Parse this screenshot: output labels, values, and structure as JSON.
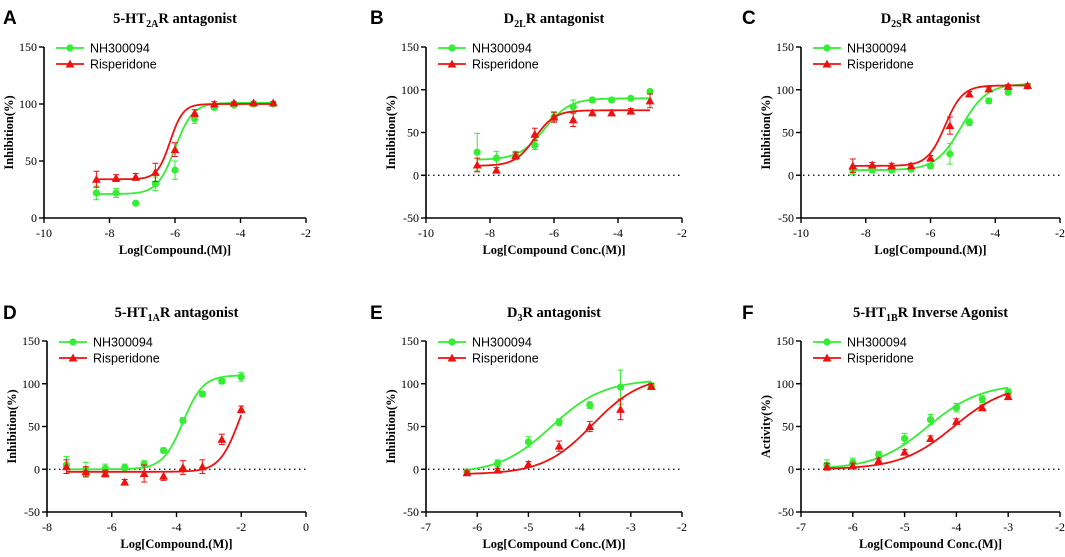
{
  "colors": {
    "green": "#33ee33",
    "red": "#ee1111",
    "axis": "#000000"
  },
  "legend": {
    "series_a": "NH300094",
    "series_b": "Risperidone"
  },
  "chart_data": [
    {
      "panel": "A",
      "type": "line",
      "title": {
        "pre": "5-HT",
        "sub": "2A",
        "post": "R antagonist"
      },
      "xlabel": "Log[Compound.(M)]",
      "ylabel": "Inhibition(%)",
      "xlim": [
        -10,
        -2
      ],
      "xticks": [
        -10,
        -8,
        -6,
        -4,
        -2
      ],
      "ylim": [
        0,
        150
      ],
      "yticks": [
        0,
        50,
        100,
        150
      ],
      "zero_line": false,
      "series": [
        {
          "name": "NH300094",
          "color": "green",
          "marker": "circle",
          "fit": {
            "bottom": 21,
            "top": 101,
            "x50": -6.0,
            "hill": 1.6
          },
          "x": [
            -8.4,
            -7.8,
            -7.2,
            -6.6,
            -6.0,
            -5.4,
            -4.8,
            -4.2,
            -3.6,
            -3.0
          ],
          "y": [
            22,
            22,
            13,
            30,
            42,
            87,
            97,
            99,
            100,
            100
          ],
          "err": [
            6,
            4,
            1,
            6,
            8,
            4,
            2,
            1,
            1,
            1
          ]
        },
        {
          "name": "Risperidone",
          "color": "red",
          "marker": "triangle",
          "fit": {
            "bottom": 34,
            "top": 100,
            "x50": -6.15,
            "hill": 2.2
          },
          "x": [
            -8.4,
            -7.8,
            -7.2,
            -6.6,
            -6.0,
            -5.4,
            -4.8,
            -4.2,
            -3.6,
            -3.0
          ],
          "y": [
            34,
            35,
            36,
            40,
            60,
            92,
            100,
            101,
            101,
            101
          ],
          "err": [
            7,
            3,
            3,
            8,
            6,
            3,
            2,
            1,
            1,
            1
          ]
        }
      ]
    },
    {
      "panel": "B",
      "type": "line",
      "title": {
        "pre": "D",
        "sub": "2L",
        "post": "R antagonist"
      },
      "xlabel": "Log[Compound Conc.(M)]",
      "ylabel": "Inhibition(%)",
      "xlim": [
        -10,
        -2
      ],
      "xticks": [
        -10,
        -8,
        -6,
        -4,
        -2
      ],
      "ylim": [
        -50,
        150
      ],
      "yticks": [
        -50,
        0,
        50,
        100,
        150
      ],
      "zero_line": true,
      "series": [
        {
          "name": "NH300094",
          "color": "green",
          "marker": "circle",
          "fit": {
            "bottom": 18,
            "top": 90,
            "x50": -6.3,
            "hill": 1.1
          },
          "x": [
            -8.4,
            -7.8,
            -7.2,
            -6.6,
            -6.0,
            -5.4,
            -4.8,
            -4.2,
            -3.6,
            -3.0
          ],
          "y": [
            27,
            20,
            23,
            35,
            68,
            80,
            88,
            88,
            90,
            98
          ],
          "err": [
            22,
            8,
            5,
            5,
            5,
            8,
            3,
            2,
            2,
            2
          ]
        },
        {
          "name": "Risperidone",
          "color": "red",
          "marker": "triangle",
          "fit": {
            "bottom": 11,
            "top": 76,
            "x50": -6.6,
            "hill": 1.4
          },
          "x": [
            -8.4,
            -7.8,
            -7.2,
            -6.6,
            -6.0,
            -5.4,
            -4.8,
            -4.2,
            -3.6,
            -3.0
          ],
          "y": [
            12,
            6,
            23,
            48,
            68,
            65,
            73,
            73,
            75,
            87
          ],
          "err": [
            8,
            3,
            4,
            7,
            6,
            8,
            3,
            3,
            3,
            8
          ]
        }
      ]
    },
    {
      "panel": "C",
      "type": "line",
      "title": {
        "pre": "D",
        "sub": "2S",
        "post": "R antagonist"
      },
      "xlabel": "Log[Compound.(M)]",
      "ylabel": "Inhibition(%)",
      "xlim": [
        -10,
        -2
      ],
      "xticks": [
        -10,
        -8,
        -6,
        -4,
        -2
      ],
      "ylim": [
        -50,
        150
      ],
      "yticks": [
        -50,
        0,
        50,
        100,
        150
      ],
      "zero_line": true,
      "series": [
        {
          "name": "NH300094",
          "color": "green",
          "marker": "circle",
          "fit": {
            "bottom": 6,
            "top": 107,
            "x50": -5.05,
            "hill": 1.1
          },
          "x": [
            -8.4,
            -7.8,
            -7.2,
            -6.6,
            -6.0,
            -5.4,
            -4.8,
            -4.2,
            -3.6,
            -3.0
          ],
          "y": [
            6,
            6,
            6,
            7,
            11,
            25,
            62,
            87,
            97,
            104
          ],
          "err": [
            5,
            3,
            3,
            3,
            3,
            12,
            4,
            3,
            2,
            2
          ]
        },
        {
          "name": "Risperidone",
          "color": "red",
          "marker": "triangle",
          "fit": {
            "bottom": 11,
            "top": 105,
            "x50": -5.55,
            "hill": 1.6
          },
          "x": [
            -8.4,
            -7.8,
            -7.2,
            -6.6,
            -6.0,
            -5.4,
            -4.8,
            -4.2,
            -3.6,
            -3.0
          ],
          "y": [
            11,
            12,
            11,
            11,
            20,
            58,
            95,
            101,
            104,
            105
          ],
          "err": [
            8,
            3,
            3,
            3,
            3,
            10,
            3,
            2,
            2,
            2
          ]
        }
      ]
    },
    {
      "panel": "D",
      "type": "line",
      "title": {
        "pre": "5-HT",
        "sub": "1A",
        "post": "R antagonist"
      },
      "xlabel": "Log[Compound.(M)]",
      "ylabel": "Inhibition(%)",
      "xlim": [
        -8,
        0
      ],
      "xticks": [
        -8,
        -6,
        -4,
        -2,
        0
      ],
      "ylim": [
        -50,
        150
      ],
      "yticks": [
        -50,
        0,
        50,
        100,
        150
      ],
      "zero_line": true,
      "series": [
        {
          "name": "NH300094",
          "color": "green",
          "marker": "circle",
          "fit": {
            "bottom": 0,
            "top": 110,
            "x50": -3.8,
            "hill": 1.4
          },
          "x": [
            -7.4,
            -6.8,
            -6.2,
            -5.6,
            -5.0,
            -4.4,
            -3.8,
            -3.2,
            -2.6,
            -2.0
          ],
          "y": [
            5,
            0,
            1,
            2,
            6,
            22,
            57,
            88,
            103,
            108
          ],
          "err": [
            10,
            8,
            5,
            4,
            4,
            3,
            3,
            3,
            3,
            5
          ]
        },
        {
          "name": "Risperidone",
          "color": "red",
          "marker": "triangle",
          "fit": {
            "bottom": -3,
            "top": 120,
            "x50": -2.05,
            "hill": 1.4
          },
          "x": [
            -7.4,
            -6.8,
            -6.2,
            -5.6,
            -5.0,
            -4.4,
            -3.8,
            -3.2,
            -2.6,
            -2.0
          ],
          "y": [
            3,
            -3,
            -5,
            -15,
            -5,
            -8,
            2,
            3,
            35,
            70
          ],
          "err": [
            8,
            6,
            4,
            3,
            10,
            5,
            8,
            8,
            6,
            4
          ]
        }
      ]
    },
    {
      "panel": "E",
      "type": "line",
      "title": {
        "pre": "D",
        "sub": "3",
        "post": "R antagonist"
      },
      "xlabel": "Log[Compound Conc.(M)]",
      "ylabel": "Inhibition(%)",
      "xlim": [
        -7,
        -2
      ],
      "xticks": [
        -7,
        -6,
        -5,
        -4,
        -3,
        -2
      ],
      "ylim": [
        -50,
        150
      ],
      "yticks": [
        -50,
        0,
        50,
        100,
        150
      ],
      "zero_line": true,
      "series": [
        {
          "name": "NH300094",
          "color": "green",
          "marker": "circle",
          "fit": {
            "bottom": -5,
            "top": 105,
            "x50": -4.55,
            "hill": 0.85
          },
          "x": [
            -6.2,
            -5.6,
            -5.0,
            -4.4,
            -3.8,
            -3.2,
            -2.6
          ],
          "y": [
            -3,
            7,
            32,
            55,
            75,
            96,
            97
          ],
          "err": [
            3,
            4,
            6,
            4,
            4,
            20,
            4
          ]
        },
        {
          "name": "Risperidone",
          "color": "red",
          "marker": "triangle",
          "fit": {
            "bottom": -6,
            "top": 110,
            "x50": -3.75,
            "hill": 0.9
          },
          "x": [
            -6.2,
            -5.6,
            -5.0,
            -4.4,
            -3.8,
            -3.2,
            -2.6
          ],
          "y": [
            -4,
            -1,
            6,
            27,
            50,
            70,
            97
          ],
          "err": [
            2,
            2,
            3,
            6,
            6,
            12,
            3
          ]
        }
      ]
    },
    {
      "panel": "F",
      "type": "line",
      "title": {
        "pre": "5-HT",
        "sub": "1B",
        "post": "R Inverse Agonist"
      },
      "xlabel": "Log[Compound Conc.(M)]",
      "ylabel": "Activity(%)",
      "xlim": [
        -7,
        -2
      ],
      "xticks": [
        -7,
        -6,
        -5,
        -4,
        -3,
        -2
      ],
      "ylim": [
        -50,
        150
      ],
      "yticks": [
        -50,
        0,
        50,
        100,
        150
      ],
      "zero_line": true,
      "series": [
        {
          "name": "NH300094",
          "color": "green",
          "marker": "circle",
          "fit": {
            "bottom": 0,
            "top": 100,
            "x50": -4.55,
            "hill": 0.85
          },
          "x": [
            -6.5,
            -6.0,
            -5.5,
            -5.0,
            -4.5,
            -4.0,
            -3.5,
            -3.0
          ],
          "y": [
            5,
            8,
            17,
            36,
            58,
            72,
            82,
            90
          ],
          "err": [
            6,
            5,
            4,
            6,
            6,
            5,
            4,
            4
          ]
        },
        {
          "name": "Risperidone",
          "color": "red",
          "marker": "triangle",
          "fit": {
            "bottom": 0,
            "top": 100,
            "x50": -4.05,
            "hill": 0.85
          },
          "x": [
            -6.5,
            -6.0,
            -5.5,
            -5.0,
            -4.5,
            -4.0,
            -3.5,
            -3.0
          ],
          "y": [
            3,
            4,
            10,
            20,
            36,
            56,
            72,
            85
          ],
          "err": [
            4,
            3,
            3,
            3,
            3,
            3,
            3,
            3
          ]
        }
      ]
    }
  ]
}
